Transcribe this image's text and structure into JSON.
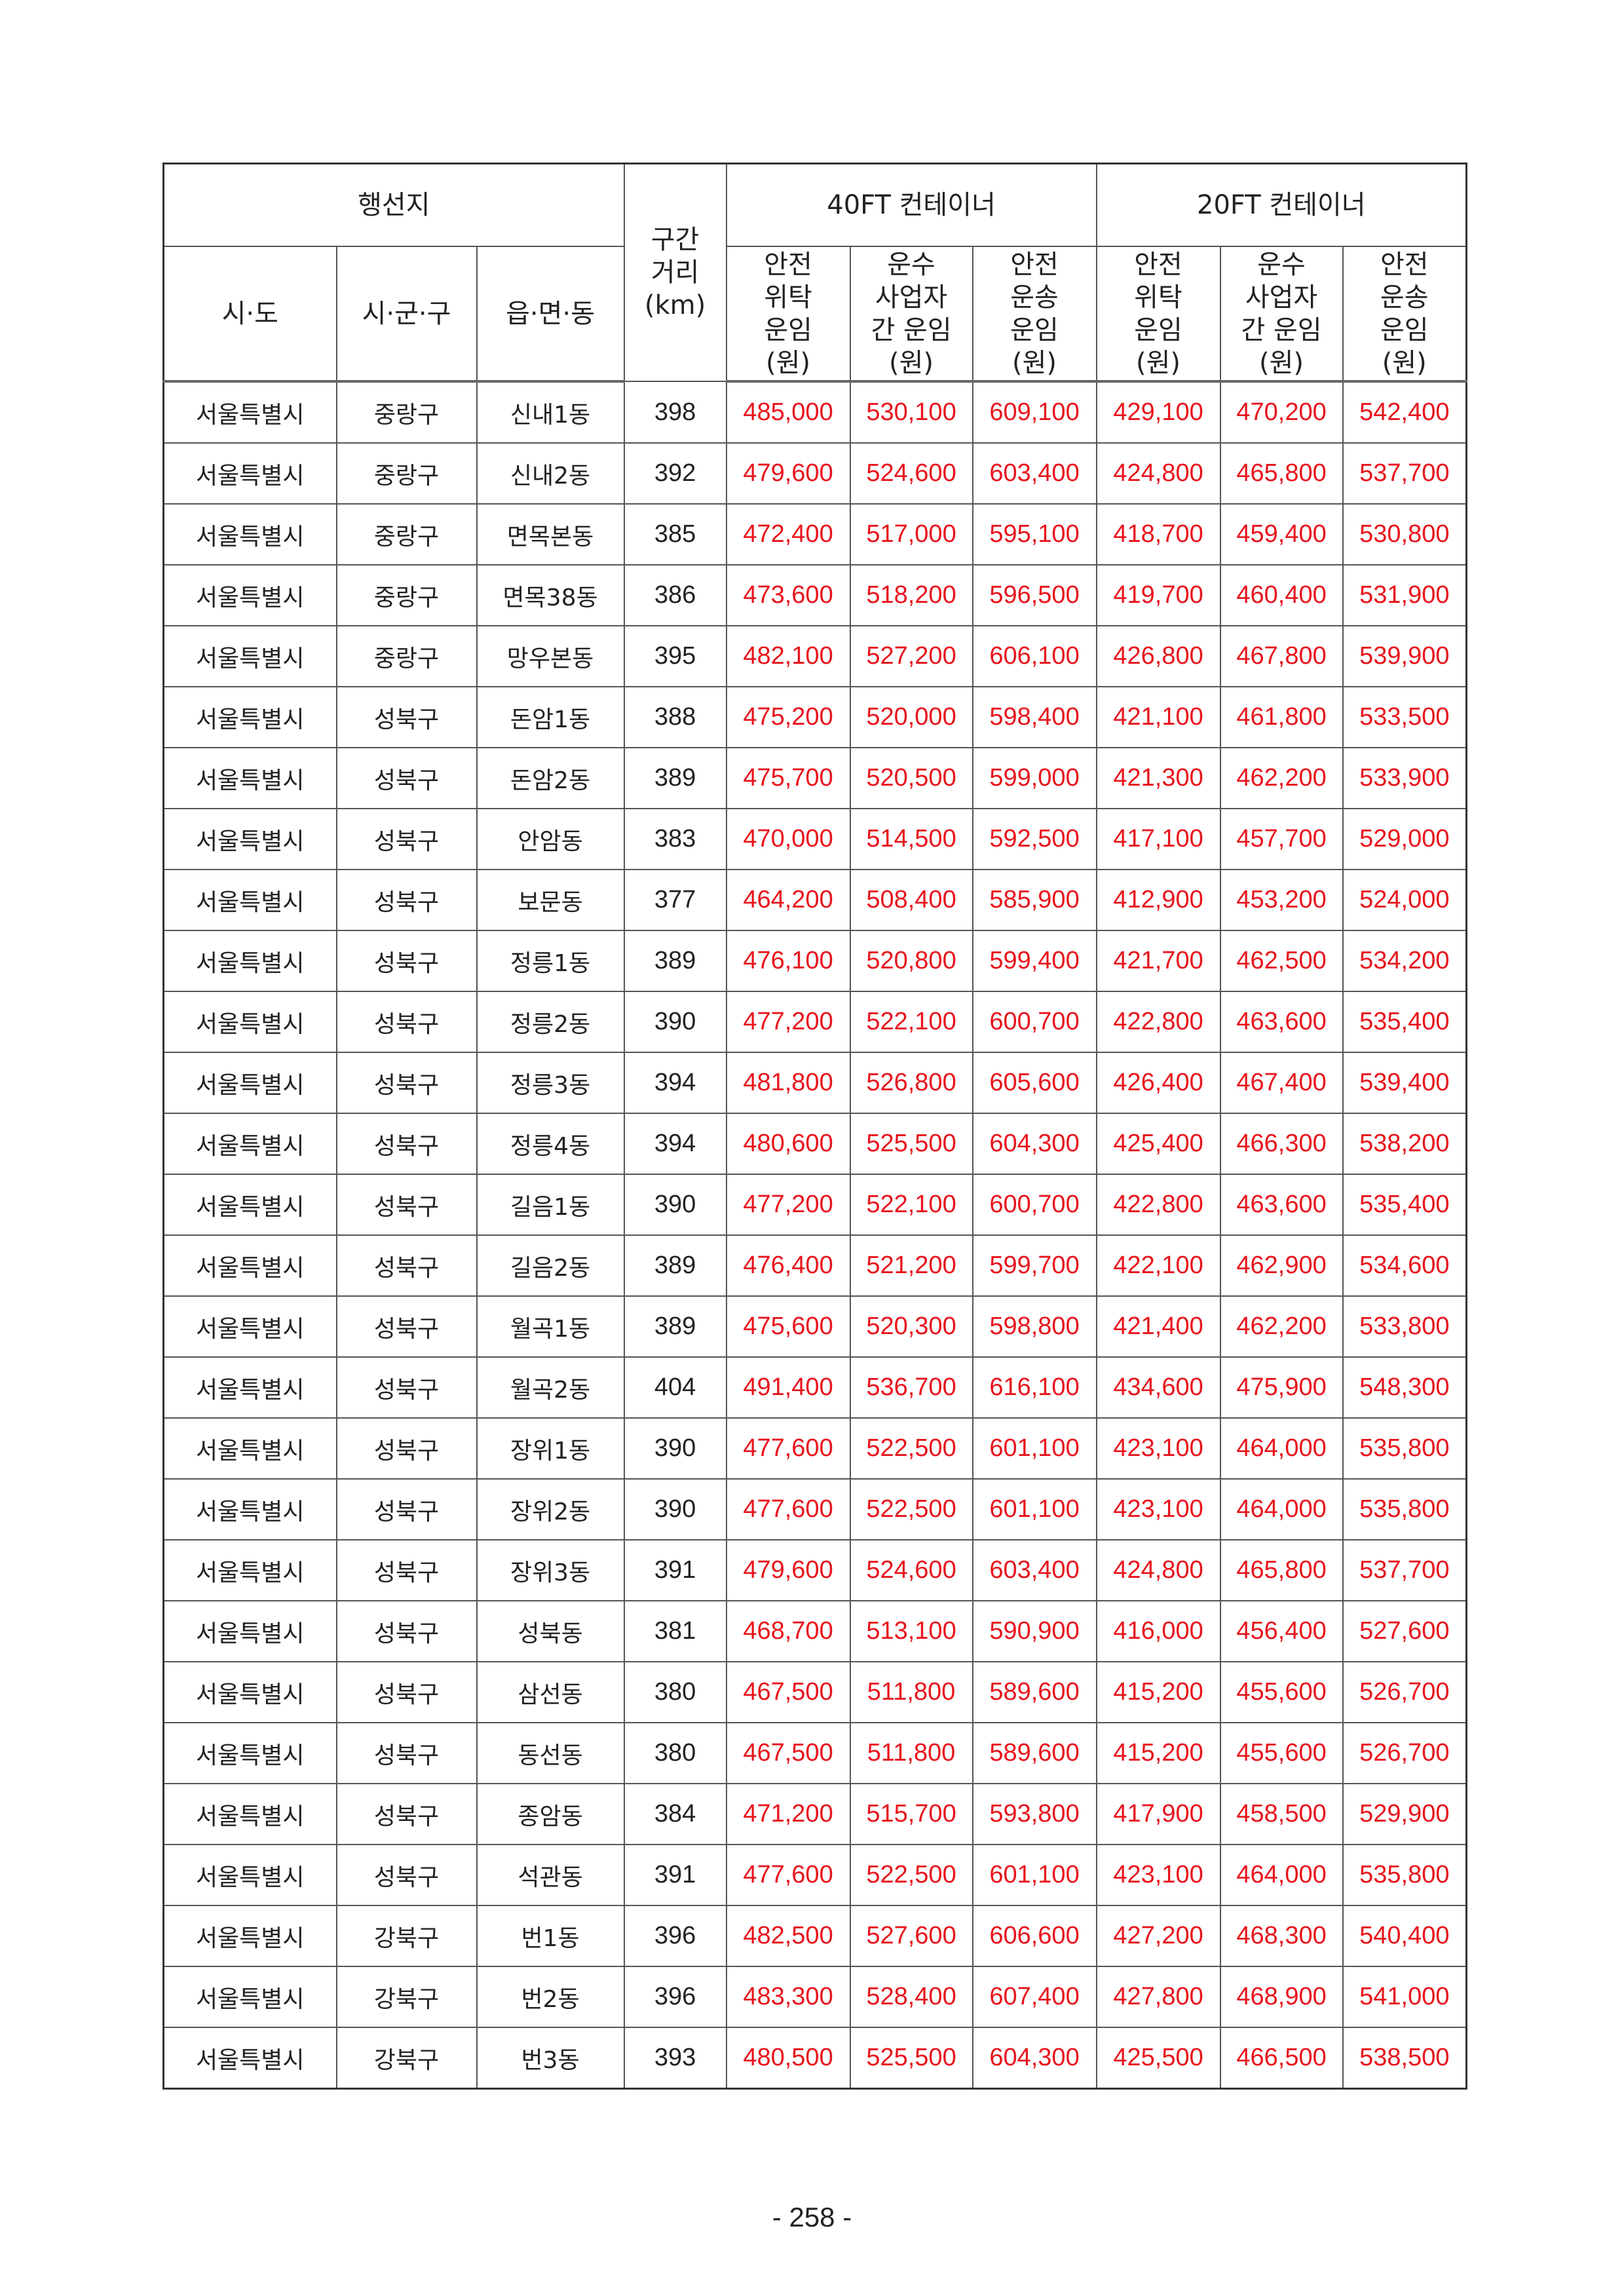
{
  "header": {
    "destination": "행선지",
    "distance": [
      "구간",
      "거리",
      "(km)"
    ],
    "group40": "40FT 컨테이너",
    "group20": "20FT 컨테이너",
    "sido": "시·도",
    "sigungu": "시·군·구",
    "eupmyeondong": "읍·면·동",
    "rate_cols": [
      [
        "안전",
        "위탁",
        "운임",
        "(원)"
      ],
      [
        "운수",
        "사업자",
        "간 운임",
        "(원)"
      ],
      [
        "안전",
        "운송",
        "운임",
        "(원)"
      ],
      [
        "안전",
        "위탁",
        "운임",
        "(원)"
      ],
      [
        "운수",
        "사업자",
        "간 운임",
        "(원)"
      ],
      [
        "안전",
        "운송",
        "운임",
        "(원)"
      ]
    ]
  },
  "colors": {
    "rate_text": "#e8141c"
  },
  "rows": [
    [
      "서울특별시",
      "중랑구",
      "신내1동",
      "398",
      "485,000",
      "530,100",
      "609,100",
      "429,100",
      "470,200",
      "542,400"
    ],
    [
      "서울특별시",
      "중랑구",
      "신내2동",
      "392",
      "479,600",
      "524,600",
      "603,400",
      "424,800",
      "465,800",
      "537,700"
    ],
    [
      "서울특별시",
      "중랑구",
      "면목본동",
      "385",
      "472,400",
      "517,000",
      "595,100",
      "418,700",
      "459,400",
      "530,800"
    ],
    [
      "서울특별시",
      "중랑구",
      "면목38동",
      "386",
      "473,600",
      "518,200",
      "596,500",
      "419,700",
      "460,400",
      "531,900"
    ],
    [
      "서울특별시",
      "중랑구",
      "망우본동",
      "395",
      "482,100",
      "527,200",
      "606,100",
      "426,800",
      "467,800",
      "539,900"
    ],
    [
      "서울특별시",
      "성북구",
      "돈암1동",
      "388",
      "475,200",
      "520,000",
      "598,400",
      "421,100",
      "461,800",
      "533,500"
    ],
    [
      "서울특별시",
      "성북구",
      "돈암2동",
      "389",
      "475,700",
      "520,500",
      "599,000",
      "421,300",
      "462,200",
      "533,900"
    ],
    [
      "서울특별시",
      "성북구",
      "안암동",
      "383",
      "470,000",
      "514,500",
      "592,500",
      "417,100",
      "457,700",
      "529,000"
    ],
    [
      "서울특별시",
      "성북구",
      "보문동",
      "377",
      "464,200",
      "508,400",
      "585,900",
      "412,900",
      "453,200",
      "524,000"
    ],
    [
      "서울특별시",
      "성북구",
      "정릉1동",
      "389",
      "476,100",
      "520,800",
      "599,400",
      "421,700",
      "462,500",
      "534,200"
    ],
    [
      "서울특별시",
      "성북구",
      "정릉2동",
      "390",
      "477,200",
      "522,100",
      "600,700",
      "422,800",
      "463,600",
      "535,400"
    ],
    [
      "서울특별시",
      "성북구",
      "정릉3동",
      "394",
      "481,800",
      "526,800",
      "605,600",
      "426,400",
      "467,400",
      "539,400"
    ],
    [
      "서울특별시",
      "성북구",
      "정릉4동",
      "394",
      "480,600",
      "525,500",
      "604,300",
      "425,400",
      "466,300",
      "538,200"
    ],
    [
      "서울특별시",
      "성북구",
      "길음1동",
      "390",
      "477,200",
      "522,100",
      "600,700",
      "422,800",
      "463,600",
      "535,400"
    ],
    [
      "서울특별시",
      "성북구",
      "길음2동",
      "389",
      "476,400",
      "521,200",
      "599,700",
      "422,100",
      "462,900",
      "534,600"
    ],
    [
      "서울특별시",
      "성북구",
      "월곡1동",
      "389",
      "475,600",
      "520,300",
      "598,800",
      "421,400",
      "462,200",
      "533,800"
    ],
    [
      "서울특별시",
      "성북구",
      "월곡2동",
      "404",
      "491,400",
      "536,700",
      "616,100",
      "434,600",
      "475,900",
      "548,300"
    ],
    [
      "서울특별시",
      "성북구",
      "장위1동",
      "390",
      "477,600",
      "522,500",
      "601,100",
      "423,100",
      "464,000",
      "535,800"
    ],
    [
      "서울특별시",
      "성북구",
      "장위2동",
      "390",
      "477,600",
      "522,500",
      "601,100",
      "423,100",
      "464,000",
      "535,800"
    ],
    [
      "서울특별시",
      "성북구",
      "장위3동",
      "391",
      "479,600",
      "524,600",
      "603,400",
      "424,800",
      "465,800",
      "537,700"
    ],
    [
      "서울특별시",
      "성북구",
      "성북동",
      "381",
      "468,700",
      "513,100",
      "590,900",
      "416,000",
      "456,400",
      "527,600"
    ],
    [
      "서울특별시",
      "성북구",
      "삼선동",
      "380",
      "467,500",
      "511,800",
      "589,600",
      "415,200",
      "455,600",
      "526,700"
    ],
    [
      "서울특별시",
      "성북구",
      "동선동",
      "380",
      "467,500",
      "511,800",
      "589,600",
      "415,200",
      "455,600",
      "526,700"
    ],
    [
      "서울특별시",
      "성북구",
      "종암동",
      "384",
      "471,200",
      "515,700",
      "593,800",
      "417,900",
      "458,500",
      "529,900"
    ],
    [
      "서울특별시",
      "성북구",
      "석관동",
      "391",
      "477,600",
      "522,500",
      "601,100",
      "423,100",
      "464,000",
      "535,800"
    ],
    [
      "서울특별시",
      "강북구",
      "번1동",
      "396",
      "482,500",
      "527,600",
      "606,600",
      "427,200",
      "468,300",
      "540,400"
    ],
    [
      "서울특별시",
      "강북구",
      "번2동",
      "396",
      "483,300",
      "528,400",
      "607,400",
      "427,800",
      "468,900",
      "541,000"
    ],
    [
      "서울특별시",
      "강북구",
      "번3동",
      "393",
      "480,500",
      "525,500",
      "604,300",
      "425,500",
      "466,500",
      "538,500"
    ]
  ],
  "page_number": "- 258 -"
}
